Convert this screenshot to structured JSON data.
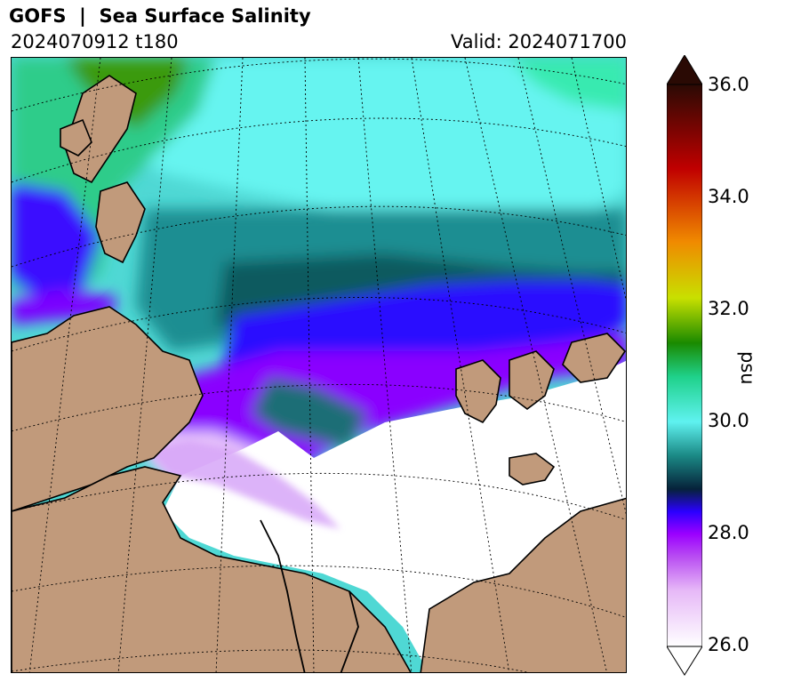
{
  "header": {
    "title": "GOFS  |  Sea Surface Salinity",
    "run": "2024070912 t180",
    "valid": "Valid: 2024071700"
  },
  "colorbar": {
    "unit": "psu",
    "min": 26.0,
    "max": 36.0,
    "ticks": [
      "36.0",
      "34.0",
      "32.0",
      "30.0",
      "28.0",
      "26.0"
    ],
    "extend": "both",
    "colors": {
      "fresh": "#ffffff",
      "lavender": "#e6b8f7",
      "violet": "#9b00ff",
      "blue": "#2a00ff",
      "navy": "#06223a",
      "teal": "#1b8a86",
      "aqua": "#5ff2f0",
      "seagreen": "#1fd18a",
      "green": "#1a8a00",
      "yellowgreen": "#c8e000",
      "orange": "#f08a00",
      "red": "#c00000",
      "darkbrown": "#2a0a04"
    }
  },
  "map": {
    "projection": "polar stereographic",
    "land_color": "#c19a7b",
    "ocean_colors": {
      "aqua": "#5ff2f0",
      "teal": "#2cb4b0",
      "dark_teal": "#0f5a5e",
      "green": "#2ecc8a",
      "olive_green": "#3a9a10",
      "violet": "#8a00ff",
      "blue": "#2a10ff",
      "lavender": "#e8c4fb",
      "white": "#ffffff"
    },
    "gridlines": "dotted"
  }
}
